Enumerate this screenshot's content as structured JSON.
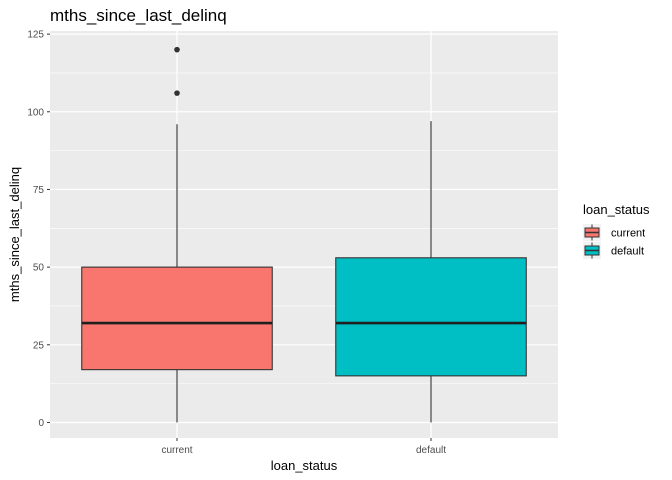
{
  "chart_data": {
    "type": "boxplot",
    "title": "mths_since_last_delinq",
    "xlabel": "loan_status",
    "ylabel": "mths_since_last_delinq",
    "categories": [
      "current",
      "default"
    ],
    "ylim": [
      -5,
      126
    ],
    "yticks": [
      0,
      25,
      50,
      75,
      100,
      125
    ],
    "grid": true,
    "boxes": [
      {
        "category": "current",
        "min": 0,
        "q1": 17,
        "median": 32,
        "q3": 50,
        "max": 96,
        "outliers": [
          106,
          120
        ]
      },
      {
        "category": "default",
        "min": 0,
        "q1": 15,
        "median": 32,
        "q3": 53,
        "max": 97,
        "outliers": []
      }
    ],
    "legend": {
      "title": "loan_status",
      "position": "right",
      "entries": [
        "current",
        "default"
      ]
    },
    "colors": {
      "current": "#F8766D",
      "default": "#00BFC4",
      "panel_background": "#EBEBEB",
      "grid": "#FFFFFF"
    }
  }
}
